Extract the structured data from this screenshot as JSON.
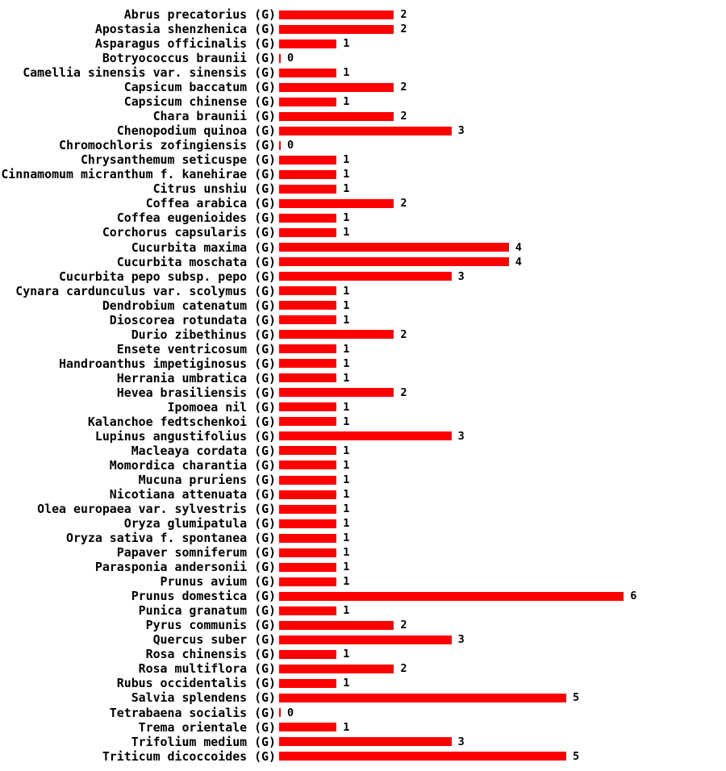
{
  "chart_data": {
    "type": "bar",
    "orientation": "horizontal",
    "title": "",
    "xlabel": "",
    "ylabel": "",
    "xlim": [
      0,
      6
    ],
    "grid": false,
    "legend": null,
    "bar_color": "#ff0000",
    "text_color": "#000000",
    "background_color": "#ffffff",
    "value_labels_shown": true,
    "categories": [
      "Abrus precatorius (G)",
      "Apostasia shenzhenica (G)",
      "Asparagus officinalis (G)",
      "Botryococcus braunii (G)",
      "Camellia sinensis var. sinensis (G)",
      "Capsicum baccatum (G)",
      "Capsicum chinense (G)",
      "Chara braunii (G)",
      "Chenopodium quinoa (G)",
      "Chromochloris zofingiensis (G)",
      "Chrysanthemum seticuspe (G)",
      "Cinnamomum micranthum f. kanehirae (G)",
      "Citrus unshiu (G)",
      "Coffea arabica (G)",
      "Coffea eugenioides (G)",
      "Corchorus capsularis (G)",
      "Cucurbita maxima (G)",
      "Cucurbita moschata (G)",
      "Cucurbita pepo subsp. pepo (G)",
      "Cynara cardunculus var. scolymus (G)",
      "Dendrobium catenatum (G)",
      "Dioscorea rotundata (G)",
      "Durio zibethinus (G)",
      "Ensete ventricosum (G)",
      "Handroanthus impetiginosus (G)",
      "Herrania umbratica (G)",
      "Hevea brasiliensis (G)",
      "Ipomoea nil (G)",
      "Kalanchoe fedtschenkoi (G)",
      "Lupinus angustifolius (G)",
      "Macleaya cordata (G)",
      "Momordica charantia (G)",
      "Mucuna pruriens (G)",
      "Nicotiana attenuata (G)",
      "Olea europaea var. sylvestris (G)",
      "Oryza glumipatula (G)",
      "Oryza sativa f. spontanea (G)",
      "Papaver somniferum (G)",
      "Parasponia andersonii (G)",
      "Prunus avium (G)",
      "Prunus domestica (G)",
      "Punica granatum (G)",
      "Pyrus communis (G)",
      "Quercus suber (G)",
      "Rosa chinensis (G)",
      "Rosa multiflora (G)",
      "Rubus occidentalis (G)",
      "Salvia splendens (G)",
      "Tetrabaena socialis (G)",
      "Trema orientale (G)",
      "Trifolium medium (G)",
      "Triticum dicoccoides (G)"
    ],
    "values": [
      2,
      2,
      1,
      0,
      1,
      2,
      1,
      2,
      3,
      0,
      1,
      1,
      1,
      2,
      1,
      1,
      4,
      4,
      3,
      1,
      1,
      1,
      2,
      1,
      1,
      1,
      2,
      1,
      1,
      3,
      1,
      1,
      1,
      1,
      1,
      1,
      1,
      1,
      1,
      1,
      6,
      1,
      2,
      3,
      1,
      2,
      1,
      5,
      0,
      1,
      3,
      5
    ]
  }
}
